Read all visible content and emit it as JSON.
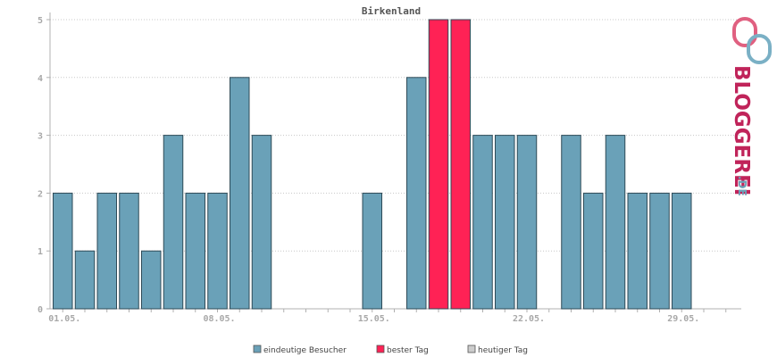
{
  "chart_data": {
    "type": "bar",
    "title": "Birkenland",
    "xlabel": "",
    "ylabel": "",
    "ylim": [
      0,
      5
    ],
    "y_ticks": [
      "0",
      "1",
      "2",
      "3",
      "4",
      "5"
    ],
    "x_tick_labels": [
      "01.05.",
      "08.05.",
      "15.05.",
      "22.05.",
      "29.05."
    ],
    "grid": "horizontal dotted",
    "legend_position": "bottom-center",
    "categories": [
      "1",
      "2",
      "3",
      "4",
      "5",
      "6",
      "7",
      "8",
      "9",
      "10",
      "11",
      "12",
      "13",
      "14",
      "15",
      "16",
      "17",
      "18",
      "19",
      "20",
      "21",
      "22",
      "23",
      "24",
      "25",
      "26",
      "27",
      "28",
      "29",
      "30",
      "31"
    ],
    "series": [
      {
        "name": "eindeutige Besucher",
        "color": "#6aa1b8",
        "values": [
          2,
          1,
          2,
          2,
          1,
          3,
          2,
          2,
          4,
          3,
          0,
          0,
          0,
          0,
          2,
          0,
          4,
          5,
          5,
          3,
          3,
          3,
          0,
          3,
          2,
          3,
          2,
          2,
          2,
          0,
          0
        ]
      }
    ],
    "best_days": [
      "18",
      "19"
    ],
    "legend": [
      {
        "label": "eindeutige Besucher",
        "color": "#6aa1b8"
      },
      {
        "label": "bester Tag",
        "color": "#ff2255"
      },
      {
        "label": "heutiger Tag",
        "color": "#cccccc"
      }
    ]
  },
  "logo": {
    "text": "BLOGGEREI",
    "suffix": ".DE",
    "primary_color": "#c0245a",
    "secondary_color": "#6aa1b8"
  }
}
